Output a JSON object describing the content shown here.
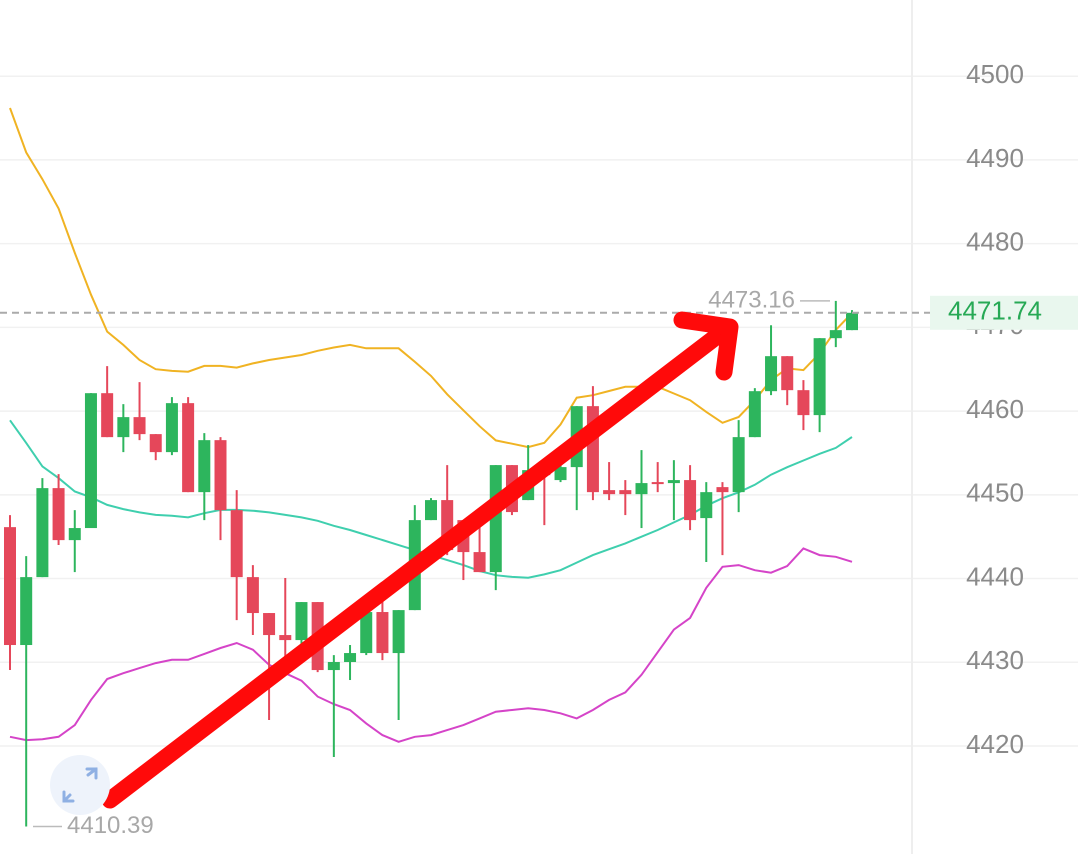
{
  "chart_data": {
    "type": "candlestick",
    "ylim": [
      4407.1,
      4509.1
    ],
    "yticks": [
      4420,
      4430,
      4440,
      4450,
      4460,
      4470,
      4480,
      4490,
      4500
    ],
    "grid": true,
    "up_color": "#2db55d",
    "down_color": "#e5475a",
    "open": [
      4446.14,
      4432.06,
      4440.17,
      4450.8,
      4444.59,
      4446.03,
      4462.14,
      4456.89,
      4459.28,
      4457.25,
      4455.1,
      4460.95,
      4450.32,
      4456.53,
      4448.17,
      4440.17,
      4435.88,
      4433.25,
      4432.65,
      4437.19,
      4429.07,
      4430.03,
      4431.1,
      4436.0,
      4431.1,
      4436.23,
      4446.98,
      4449.37,
      4446.98,
      4443.16,
      4440.77,
      4453.55,
      4449.37,
      4453.55,
      4451.76,
      4453.31,
      4460.59,
      4450.56,
      4450.56,
      4450.08,
      4451.52,
      4451.4,
      4451.76,
      4447.22,
      4450.92,
      4450.32,
      4456.89,
      4462.38,
      4466.56,
      4462.5,
      4459.52,
      4468.71,
      4469.67
    ],
    "high": [
      4447.58,
      4442.68,
      4452.0,
      4452.47,
      4448.17,
      4462.14,
      4465.37,
      4460.83,
      4463.46,
      4457.25,
      4461.67,
      4461.67,
      4457.37,
      4456.89,
      4450.56,
      4441.61,
      4435.88,
      4440.06,
      4437.19,
      4437.19,
      4430.86,
      4432.06,
      4436.0,
      4439.22,
      4436.23,
      4448.77,
      4449.61,
      4453.55,
      4446.98,
      4446.98,
      4453.55,
      4453.55,
      4455.94,
      4453.55,
      4454.74,
      4460.59,
      4462.98,
      4453.91,
      4451.76,
      4455.34,
      4453.91,
      4454.14,
      4453.55,
      4451.52,
      4451.52,
      4458.92,
      4462.74,
      4470.26,
      4466.56,
      4463.7,
      4468.71,
      4473.16,
      4472.06
    ],
    "low": [
      4429.07,
      4410.39,
      4440.17,
      4444.0,
      4440.77,
      4446.03,
      4456.89,
      4455.1,
      4456.53,
      4454.14,
      4454.74,
      4450.32,
      4446.98,
      4444.59,
      4435.04,
      4433.25,
      4423.1,
      4429.07,
      4431.46,
      4428.83,
      4418.68,
      4427.88,
      4430.86,
      4430.26,
      4423.1,
      4436.23,
      4446.98,
      4442.8,
      4439.82,
      4440.77,
      4438.62,
      4447.58,
      4449.37,
      4446.38,
      4451.52,
      4448.17,
      4449.37,
      4449.37,
      4447.58,
      4446.03,
      4450.32,
      4446.98,
      4445.79,
      4441.97,
      4442.8,
      4447.94,
      4456.89,
      4461.91,
      4460.71,
      4457.73,
      4457.49,
      4467.64,
      4469.67
    ],
    "close": [
      4432.06,
      4440.17,
      4450.8,
      4444.59,
      4446.03,
      4462.14,
      4456.89,
      4459.28,
      4457.25,
      4455.1,
      4460.95,
      4450.32,
      4456.53,
      4448.17,
      4440.17,
      4435.88,
      4433.25,
      4432.65,
      4437.19,
      4429.07,
      4430.03,
      4431.1,
      4436.0,
      4431.1,
      4436.23,
      4446.98,
      4449.37,
      4443.4,
      4443.16,
      4440.77,
      4453.55,
      4447.94,
      4452.95,
      4452.35,
      4453.31,
      4460.59,
      4450.32,
      4450.08,
      4450.08,
      4451.4,
      4451.28,
      4451.76,
      4446.98,
      4450.32,
      4450.32,
      4456.89,
      4462.38,
      4466.56,
      4462.5,
      4459.52,
      4468.71,
      4469.67,
      4471.74
    ],
    "overlays": [
      {
        "color": "#f0b323",
        "values": [
          4496.2,
          4490.9,
          4487.7,
          4484.2,
          4478.9,
          4473.9,
          4469.5,
          4467.9,
          4466.1,
          4465.0,
          4464.8,
          4464.7,
          4465.4,
          4465.4,
          4465.2,
          4465.7,
          4466.1,
          4466.4,
          4466.7,
          4467.2,
          4467.6,
          4467.9,
          4467.5,
          4467.5,
          4467.5,
          4465.9,
          4464.2,
          4462.0,
          4460.1,
          4458.2,
          4456.5,
          4456.1,
          4455.7,
          4456.2,
          4458.4,
          4461.6,
          4461.9,
          4462.4,
          4462.9,
          4462.9,
          4462.9,
          4462.1,
          4461.3,
          4459.9,
          4458.6,
          4459.3,
          4461.3,
          4463.7,
          4465.1,
          4464.9,
          4466.9,
          4469.7,
          4471.7
        ]
      },
      {
        "color": "#3fcfae",
        "values": [
          4458.9,
          4456.2,
          4453.4,
          4452.0,
          4450.4,
          4449.7,
          4448.8,
          4448.3,
          4447.9,
          4447.6,
          4447.5,
          4447.3,
          4447.8,
          4448.2,
          4448.2,
          4448.1,
          4447.9,
          4447.6,
          4447.3,
          4446.9,
          4446.3,
          4445.8,
          4445.2,
          4444.6,
          4444.0,
          4443.4,
          4442.8,
          4442.2,
          4441.6,
          4440.9,
          4440.4,
          4440.2,
          4440.1,
          4440.5,
          4441.0,
          4441.9,
          4442.8,
          4443.5,
          4444.2,
          4445.0,
          4445.8,
          4446.7,
          4447.6,
          4448.7,
          4449.6,
          4450.3,
          4451.2,
          4452.4,
          4453.3,
          4454.1,
          4454.9,
          4455.6,
          4456.9
        ]
      },
      {
        "color": "#d544c8",
        "values": [
          4421.1,
          4420.7,
          4420.8,
          4421.1,
          4422.5,
          4425.5,
          4428.0,
          4428.7,
          4429.3,
          4429.9,
          4430.3,
          4430.3,
          4431.0,
          4431.7,
          4432.3,
          4431.5,
          4429.7,
          4428.7,
          4427.8,
          4425.9,
          4425.0,
          4424.3,
          4422.7,
          4421.3,
          4420.5,
          4421.1,
          4421.3,
          4421.9,
          4422.5,
          4423.3,
          4424.1,
          4424.3,
          4424.5,
          4424.3,
          4423.9,
          4423.3,
          4424.3,
          4425.5,
          4426.4,
          4428.5,
          4431.2,
          4433.9,
          4435.3,
          4438.9,
          4441.4,
          4441.6,
          4441.0,
          4440.7,
          4441.5,
          4443.6,
          4442.8,
          4442.6,
          4442.0
        ]
      }
    ],
    "max_label": 4473.16,
    "min_label": 4410.39,
    "last_price": 4471.74
  }
}
